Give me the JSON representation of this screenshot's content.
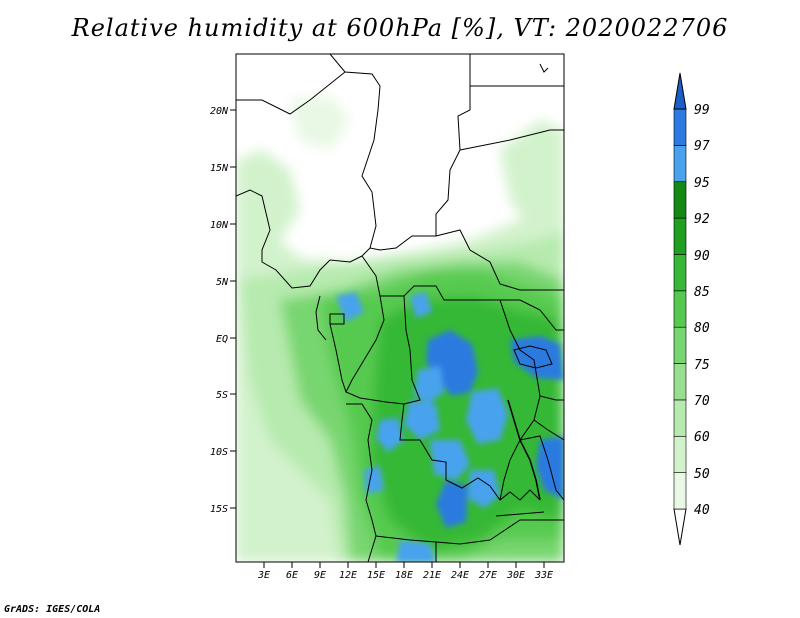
{
  "title": "Relative humidity at 600hPa [%], VT: 2020022706",
  "credit": "GrADS: IGES/COLA",
  "lat_labels": [
    "20N",
    "15N",
    "10N",
    "5N",
    "EQ",
    "5S",
    "10S",
    "15S"
  ],
  "lon_labels": [
    "3E",
    "6E",
    "9E",
    "12E",
    "15E",
    "18E",
    "21E",
    "24E",
    "27E",
    "30E",
    "33E"
  ],
  "colorbar": {
    "labels": [
      "40",
      "50",
      "60",
      "70",
      "75",
      "80",
      "85",
      "90",
      "92",
      "95",
      "97",
      "99"
    ],
    "colors": [
      "#ffffff",
      "#e8f8e4",
      "#d2f2cc",
      "#b6eaae",
      "#98e090",
      "#78d670",
      "#56ca50",
      "#36b836",
      "#20a020",
      "#148a14",
      "#4aa2ee",
      "#2a7ae0",
      "#1a5ec8"
    ]
  }
}
